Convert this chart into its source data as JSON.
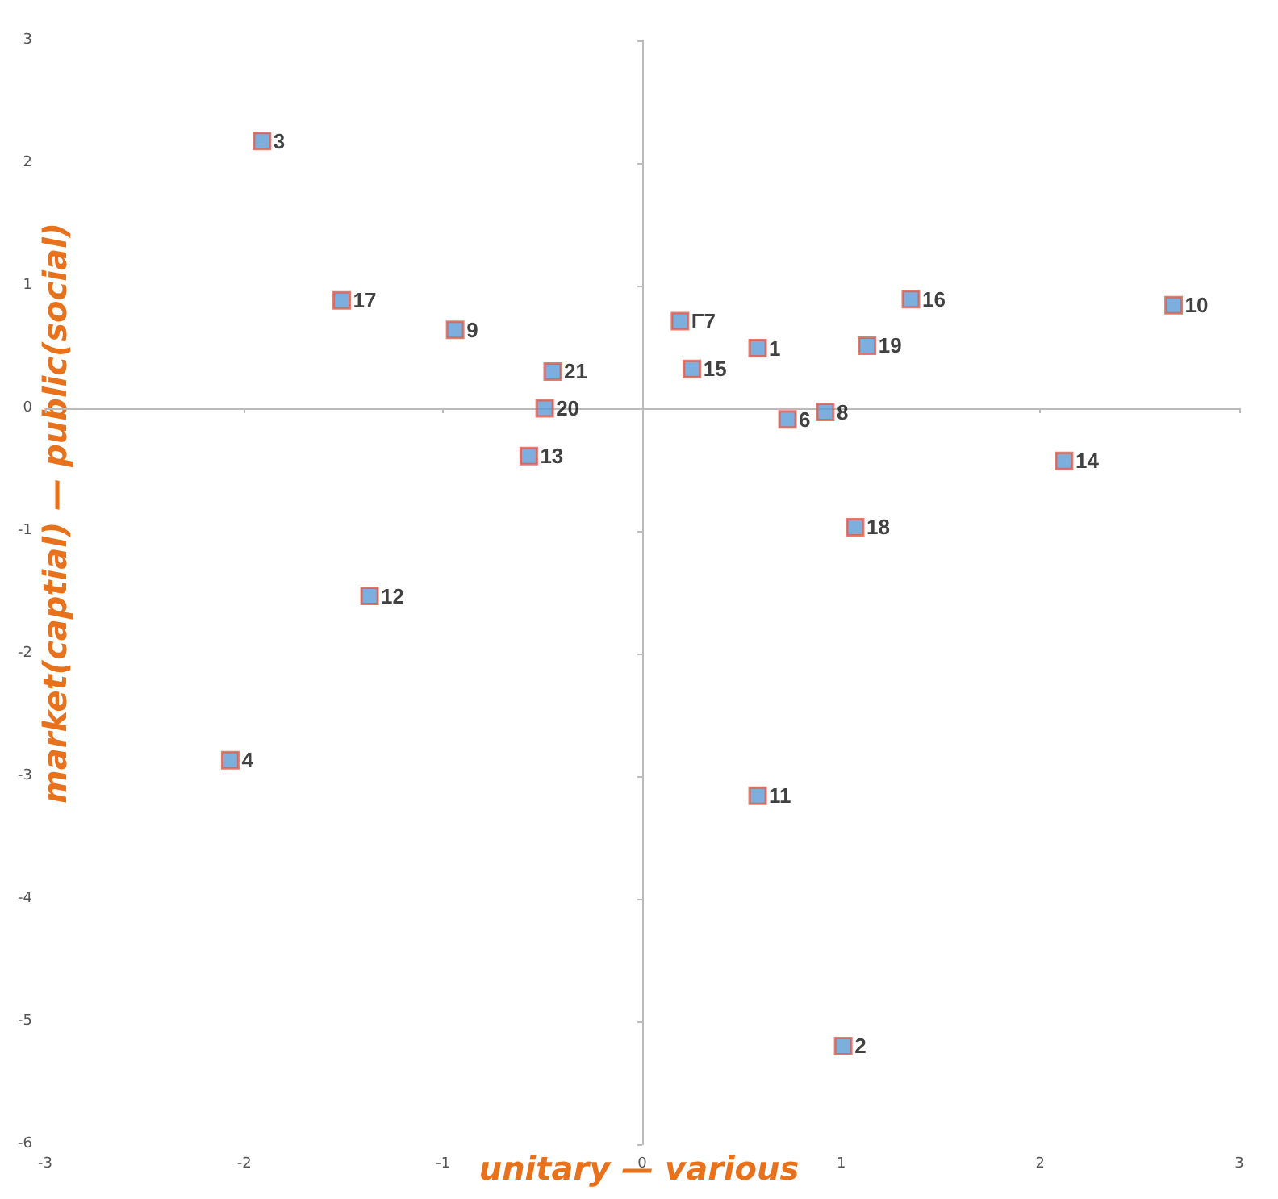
{
  "chart_data": {
    "type": "scatter",
    "xlabel": "unitary — various",
    "ylabel": "market(captial) — public(social)",
    "x": [
      0.58,
      1.01,
      -1.91,
      -2.07,
      0.19,
      0.73,
      0.92,
      -0.94,
      2.67,
      0.58,
      -1.37,
      -0.57,
      2.12,
      0.25,
      1.35,
      -1.51,
      1.07,
      1.13,
      -0.49,
      -0.45
    ],
    "series": [
      {
        "color": "#5b9bd5",
        "values": [
          0.49,
          -5.2,
          2.18,
          -2.87,
          0.71,
          -0.09,
          -0.03,
          0.64,
          0.84,
          -3.16,
          -1.53,
          -0.39,
          -0.43,
          0.32,
          0.89,
          0.88,
          -0.97,
          0.51,
          0.0,
          0.3
        ]
      }
    ],
    "annotations": [
      {
        "text": "1",
        "x": 0.58,
        "y": 0.49
      },
      {
        "text": "2",
        "x": 1.01,
        "y": -5.2
      },
      {
        "text": "3",
        "x": -1.91,
        "y": 2.18
      },
      {
        "text": "4",
        "x": -2.07,
        "y": -2.87
      },
      {
        "text": "Γ7",
        "x": 0.19,
        "y": 0.71
      },
      {
        "text": "6",
        "x": 0.73,
        "y": -0.09
      },
      {
        "text": "8",
        "x": 0.92,
        "y": -0.03
      },
      {
        "text": "9",
        "x": -0.94,
        "y": 0.64
      },
      {
        "text": "10",
        "x": 2.67,
        "y": 0.84
      },
      {
        "text": "11",
        "x": 0.58,
        "y": -3.16
      },
      {
        "text": "12",
        "x": -1.37,
        "y": -1.53
      },
      {
        "text": "13",
        "x": -0.57,
        "y": -0.39
      },
      {
        "text": "14",
        "x": 2.12,
        "y": -0.43
      },
      {
        "text": "15",
        "x": 0.25,
        "y": 0.32
      },
      {
        "text": "16",
        "x": 1.35,
        "y": 0.89
      },
      {
        "text": "17",
        "x": -1.51,
        "y": 0.88
      },
      {
        "text": "18",
        "x": 1.07,
        "y": -0.97
      },
      {
        "text": "19",
        "x": 1.13,
        "y": 0.51
      },
      {
        "text": "20",
        "x": -0.49,
        "y": 0.0
      },
      {
        "text": "21",
        "x": -0.45,
        "y": 0.3
      }
    ],
    "xlim": [
      -3,
      3
    ],
    "xticks": [
      -3,
      -2,
      -1,
      0,
      1,
      2,
      3
    ],
    "ylim": [
      -6,
      3
    ],
    "yticks": [
      -6,
      -5,
      -4,
      -3,
      -2,
      -1,
      0,
      1,
      2,
      3
    ],
    "marker": "square"
  }
}
